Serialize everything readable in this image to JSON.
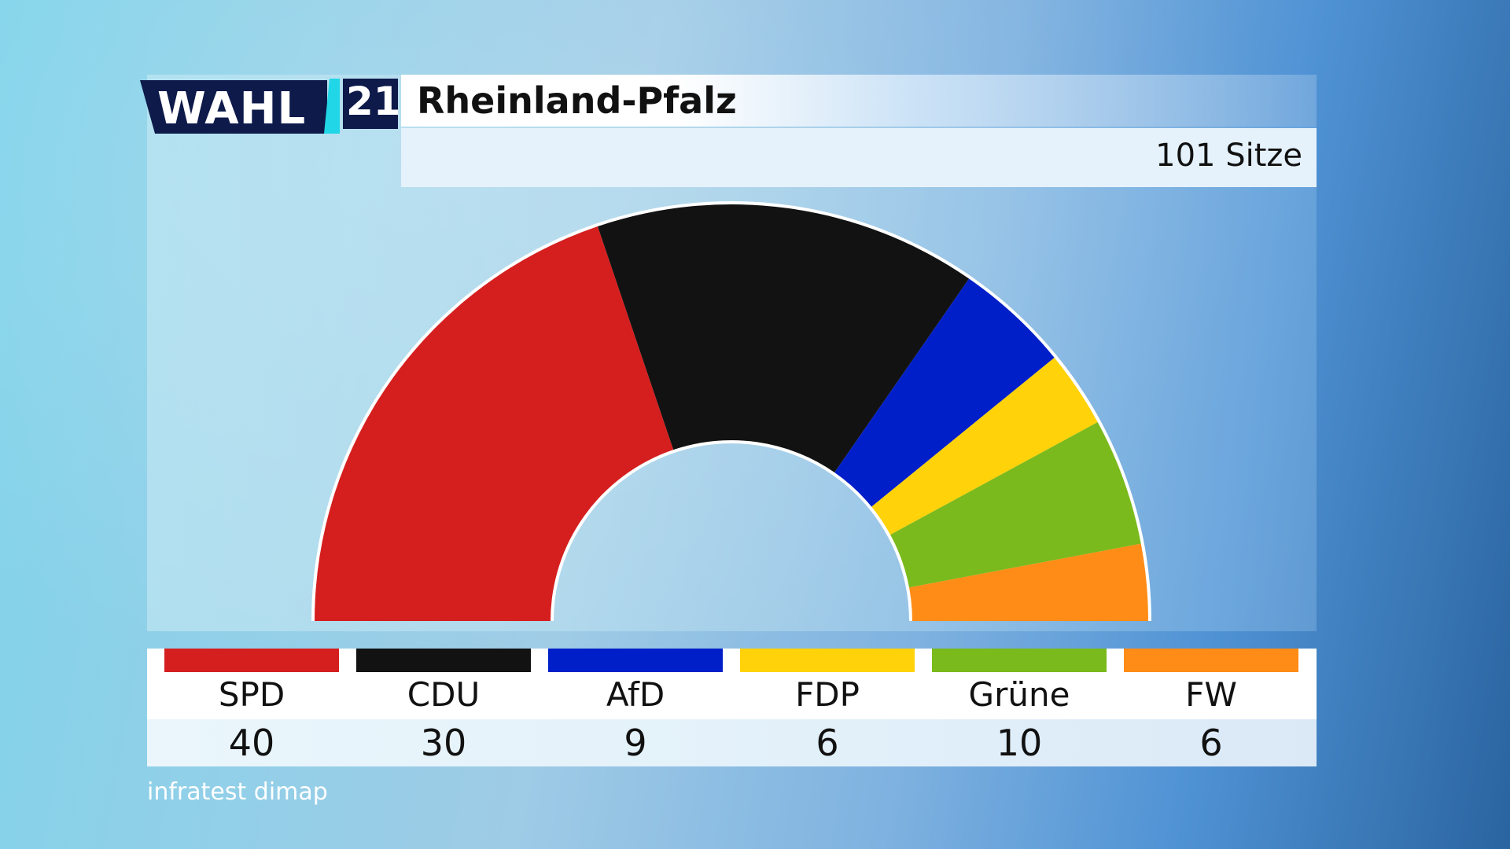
{
  "logo": {
    "wahl_text": "WAHL",
    "year_text": "21"
  },
  "header": {
    "title": "Rheinland-Pfalz",
    "seats_label": "101 Sitze"
  },
  "source": "infratest dimap",
  "colors": {
    "SPD": "#d51f1f",
    "CDU": "#121212",
    "AfD": "#001fc8",
    "FDP": "#ffd20a",
    "Grüne": "#7aba1c",
    "FW": "#ff8c16"
  },
  "chart_data": {
    "type": "pie",
    "subtype": "semicircle-parliament",
    "title": "Rheinland-Pfalz",
    "total": 101,
    "total_label": "101 Sitze",
    "categories": [
      "SPD",
      "CDU",
      "AfD",
      "FDP",
      "Grüne",
      "FW"
    ],
    "values": [
      40,
      30,
      9,
      6,
      10,
      6
    ],
    "colors": [
      "#d51f1f",
      "#121212",
      "#001fc8",
      "#ffd20a",
      "#7aba1c",
      "#ff8c16"
    ],
    "legend_placement": "bottom"
  }
}
